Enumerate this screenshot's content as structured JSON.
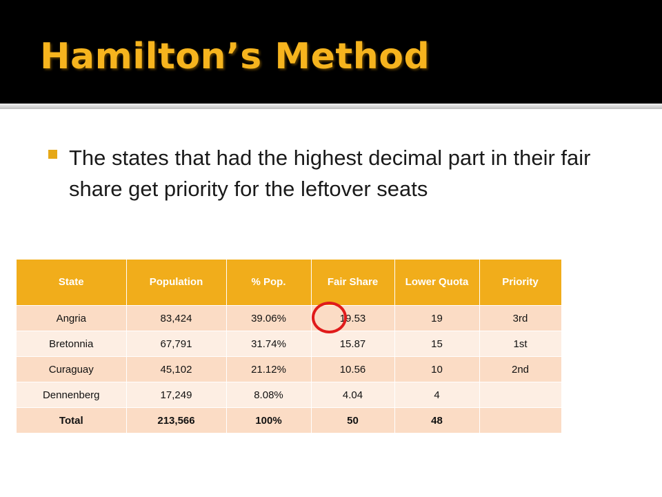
{
  "slide": {
    "title": "Hamilton’s Method",
    "bullet": "The states that had the highest decimal part in their fair share get priority for the leftover seats"
  },
  "table": {
    "headers": [
      "State",
      "Population",
      "% Pop.",
      "Fair Share",
      "Lower Quota",
      "Priority"
    ],
    "rows": [
      [
        "Angria",
        "83,424",
        "39.06%",
        "19.53",
        "19",
        "3rd"
      ],
      [
        "Bretonnia",
        "67,791",
        "31.74%",
        "15.87",
        "15",
        "1st"
      ],
      [
        "Curaguay",
        "45,102",
        "21.12%",
        "10.56",
        "10",
        "2nd"
      ],
      [
        "Dennenberg",
        "17,249",
        "8.08%",
        "4.04",
        "4",
        ""
      ],
      [
        "Total",
        "213,566",
        "100%",
        "50",
        "48",
        ""
      ]
    ]
  },
  "colors": {
    "title": "#f6b41e",
    "header_band": "#000000",
    "table_header": "#f1ad1b",
    "row_light": "#fdeee3",
    "row_dark": "#fbdcc5",
    "annotation_circle": "#e01b1b"
  }
}
